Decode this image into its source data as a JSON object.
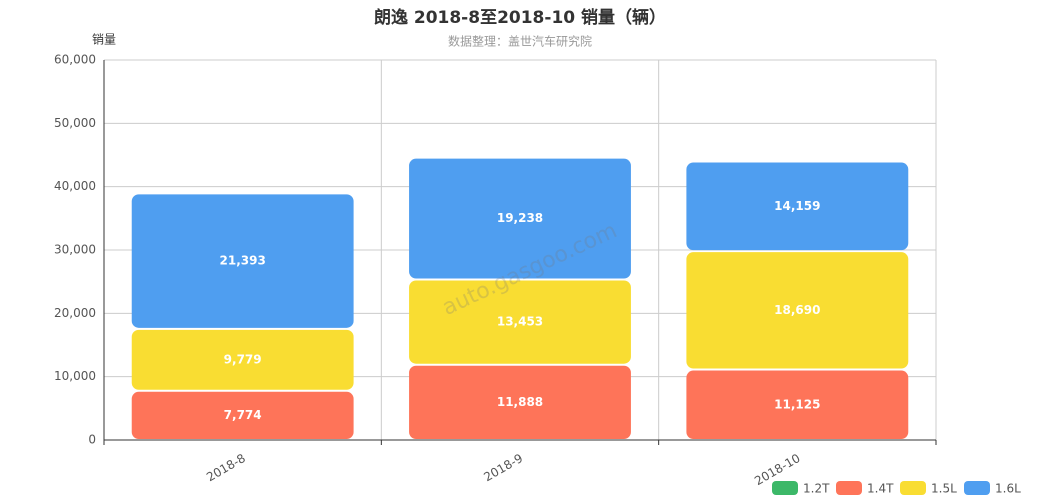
{
  "chart_data": {
    "type": "stacked_bar",
    "title": "朗逸 2018-8至2018-10 销量（辆）",
    "subtitle": "数据整理：盖世汽车研究院",
    "y_label": "销量",
    "watermark": "auto.gasgoo.com",
    "categories": [
      "2018-8",
      "2018-9",
      "2018-10"
    ],
    "series": [
      {
        "name": "1.2T",
        "color": "#3cb868",
        "values": [
          null,
          null,
          null
        ]
      },
      {
        "name": "1.4T",
        "color": "#fe7459",
        "values": [
          7774,
          11888,
          11125
        ],
        "value_labels": [
          "7,774",
          "11,888",
          "11,125"
        ]
      },
      {
        "name": "1.5L",
        "color": "#f9dd32",
        "values": [
          9779,
          13453,
          18690
        ],
        "value_labels": [
          "9,779",
          "13,453",
          "18,690"
        ]
      },
      {
        "name": "1.6L",
        "color": "#4f9ef0",
        "values": [
          21393,
          19238,
          14159
        ],
        "value_labels": [
          "21,393",
          "19,238",
          "14,159"
        ]
      }
    ],
    "ylim": [
      0,
      60000
    ],
    "yticks": [
      0,
      {
        "value": 10000,
        "label": "10,000"
      },
      {
        "value": 20000,
        "label": "20,000"
      },
      {
        "value": 30000,
        "label": "30,000"
      },
      {
        "value": 40000,
        "label": "40,000"
      },
      {
        "value": 50000,
        "label": "50,000"
      },
      {
        "value": 60000,
        "label": "60,000"
      }
    ],
    "grid": true,
    "legend": "bottom-right"
  }
}
